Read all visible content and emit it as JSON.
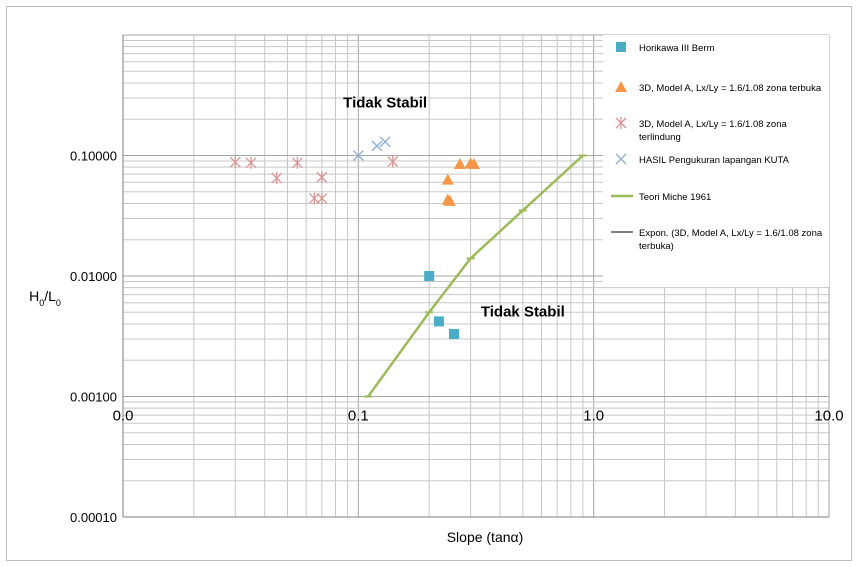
{
  "chart_data": {
    "type": "scatter",
    "xscale": "log",
    "yscale": "log",
    "xlim": [
      0.01,
      10
    ],
    "ylim": [
      0.0001,
      1
    ],
    "xlabel": "Slope (tanα)",
    "ylabel": "H0/L0",
    "x_ticks": [
      {
        "value": 0.01,
        "label": "0.0"
      },
      {
        "value": 0.1,
        "label": "0.1"
      },
      {
        "value": 1,
        "label": "1.0"
      },
      {
        "value": 10,
        "label": "10.0"
      }
    ],
    "y_ticks": [
      {
        "value": 0.0001,
        "label": "0.00010"
      },
      {
        "value": 0.001,
        "label": "0.00100"
      },
      {
        "value": 0.01,
        "label": "0.01000"
      },
      {
        "value": 0.1,
        "label": "0.10000"
      }
    ],
    "grid": true,
    "legend_position": "right",
    "annotations": [
      {
        "text": "Tidak Stabil",
        "x": 0.13,
        "y": 0.25
      },
      {
        "text": "Tidak Stabil",
        "x": 0.5,
        "y": 0.0046
      }
    ],
    "series": [
      {
        "name": "Horikawa III Berm",
        "marker": "square",
        "color": "#4bacc6",
        "points": [
          [
            0.2,
            0.01
          ],
          [
            0.22,
            0.0042
          ],
          [
            0.255,
            0.0033
          ]
        ]
      },
      {
        "name": "3D, Model A, Lx/Ly = 1.6/1.08 zona terbuka",
        "marker": "triangle",
        "color": "#f79646",
        "points": [
          [
            0.24,
            0.063
          ],
          [
            0.24,
            0.043
          ],
          [
            0.245,
            0.042
          ],
          [
            0.27,
            0.085
          ],
          [
            0.3,
            0.086
          ],
          [
            0.31,
            0.085
          ]
        ]
      },
      {
        "name": "3D, Model A, Lx/Ly = 1.6/1.08 zona terlindung",
        "marker": "asterisk",
        "color": "#d99694",
        "points": [
          [
            0.03,
            0.088
          ],
          [
            0.035,
            0.087
          ],
          [
            0.045,
            0.065
          ],
          [
            0.055,
            0.087
          ],
          [
            0.065,
            0.044
          ],
          [
            0.07,
            0.044
          ],
          [
            0.07,
            0.066
          ],
          [
            0.14,
            0.089
          ]
        ]
      },
      {
        "name": "HASIL Pengukuran lapangan KUTA",
        "marker": "x",
        "color": "#95b3d7",
        "points": [
          [
            0.1,
            0.1
          ],
          [
            0.12,
            0.12
          ],
          [
            0.13,
            0.13
          ]
        ]
      },
      {
        "name": "Teori Miche 1961",
        "marker": "line",
        "color": "#9bbb59",
        "points": [
          [
            0.11,
            0.001
          ],
          [
            0.2,
            0.005
          ],
          [
            0.3,
            0.014
          ],
          [
            0.5,
            0.035
          ],
          [
            0.9,
            0.1
          ]
        ]
      },
      {
        "name": "Expon. (3D, Model A, Lx/Ly = 1.6/1.08 zona terbuka)",
        "marker": "line",
        "color": "#000000",
        "points": []
      }
    ]
  }
}
